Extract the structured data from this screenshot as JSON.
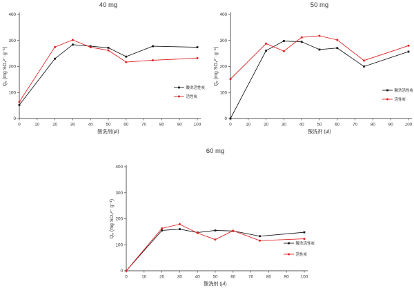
{
  "figure": {
    "background": "#ffffff",
    "series_colors": {
      "acid_washed": "#1a1a1a",
      "plain": "#e02222"
    }
  },
  "chart_data": [
    {
      "type": "line",
      "title": "40 mg",
      "xlabel": "酸洗剂(μl)",
      "ylabel": "Qₑ (mg SO₄²⁻·g⁻¹)",
      "xlim": [
        0,
        100
      ],
      "ylim": [
        0,
        400
      ],
      "xticks": [
        0,
        10,
        20,
        30,
        40,
        50,
        60,
        70,
        80,
        90,
        100
      ],
      "yticks": [
        0,
        100,
        200,
        300,
        400
      ],
      "grid": false,
      "legend_position": "inside-right-middle",
      "x": [
        0,
        20,
        30,
        40,
        50,
        60,
        75,
        100
      ],
      "series": [
        {
          "name": "酸洗活性炭",
          "color": "#1a1a1a",
          "marker": "square",
          "values": [
            52,
            230,
            284,
            278,
            272,
            238,
            278,
            274
          ]
        },
        {
          "name": "活性炭",
          "color": "#e02222",
          "marker": "circle",
          "values": [
            64,
            275,
            302,
            274,
            262,
            217,
            224,
            232
          ]
        }
      ]
    },
    {
      "type": "line",
      "title": "50 mg",
      "xlabel": "酸洗剂 (μl)",
      "ylabel": "Qₑ (mg SO₄²⁻·g⁻¹)",
      "xlim": [
        0,
        100
      ],
      "ylim": [
        0,
        400
      ],
      "xticks": [
        0,
        10,
        20,
        30,
        40,
        50,
        60,
        70,
        80,
        90,
        100
      ],
      "yticks": [
        0,
        100,
        200,
        300,
        400
      ],
      "grid": false,
      "legend_position": "inside-right-middle",
      "x": [
        0,
        20,
        30,
        40,
        50,
        60,
        75,
        100
      ],
      "series": [
        {
          "name": "酸洗活性炭",
          "color": "#1a1a1a",
          "marker": "square",
          "values": [
            0,
            261,
            298,
            295,
            265,
            271,
            200,
            257
          ]
        },
        {
          "name": "活性炭",
          "color": "#e02222",
          "marker": "circle",
          "values": [
            152,
            288,
            259,
            312,
            318,
            302,
            223,
            280
          ]
        }
      ]
    },
    {
      "type": "line",
      "title": "60 mg",
      "xlabel": "酸洗剂 (μl)",
      "ylabel": "Qₑ (mg SO₄²⁻ g⁻¹)",
      "xlim": [
        0,
        100
      ],
      "ylim": [
        0,
        400
      ],
      "xticks": [
        0,
        10,
        20,
        30,
        40,
        50,
        60,
        70,
        80,
        90,
        100
      ],
      "yticks": [
        0,
        100,
        200,
        300,
        400
      ],
      "grid": false,
      "legend_position": "inside-right-lower",
      "x": [
        0,
        20,
        30,
        40,
        50,
        60,
        75,
        100
      ],
      "series": [
        {
          "name": "酸洗活性炭",
          "color": "#1a1a1a",
          "marker": "square",
          "values": [
            0,
            155,
            160,
            147,
            155,
            153,
            133,
            148
          ]
        },
        {
          "name": "活性炭",
          "color": "#e02222",
          "marker": "circle",
          "values": [
            0,
            163,
            179,
            145,
            120,
            154,
            116,
            123
          ]
        }
      ]
    }
  ]
}
